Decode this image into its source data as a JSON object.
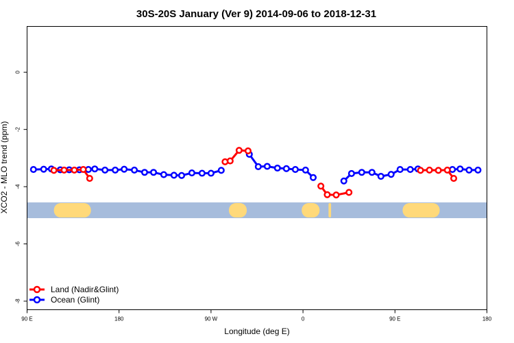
{
  "chart_data": {
    "type": "line",
    "title": "30S-20S January (Ver 9)   2014-09-06 to 2018-12-31",
    "xlabel": "Longitude (deg E)",
    "ylabel": "XCO2 - MLO trend (ppm)",
    "xlim": [
      90,
      450
    ],
    "ylim": [
      -8.3,
      1.6
    ],
    "x_ticks": [
      {
        "value": 90,
        "label": "90 E"
      },
      {
        "value": 162,
        "label": "180"
      },
      {
        "value": 234,
        "label": "90 W"
      },
      {
        "value": 306,
        "label": "0"
      },
      {
        "value": 378,
        "label": "90 E"
      },
      {
        "value": 450,
        "label": "180"
      }
    ],
    "y_ticks": [
      {
        "value": 0,
        "label": "0"
      },
      {
        "value": -2,
        "label": "-2"
      },
      {
        "value": -4,
        "label": "-4"
      },
      {
        "value": -6,
        "label": "-6"
      },
      {
        "value": -8,
        "label": "-8"
      }
    ],
    "grid": false,
    "legend": {
      "position": "bottom-left"
    },
    "colors": {
      "land": "#ff0000",
      "ocean": "#0000ff",
      "sea_band": "#a6bcdc",
      "land_band": "#ffd97a"
    },
    "surface_band": {
      "y_top": -4.55,
      "y_bottom": -5.1,
      "land_segments": [
        {
          "x_start": 111,
          "x_end": 140
        },
        {
          "x_start": 248,
          "x_end": 262
        },
        {
          "x_start": 305,
          "x_end": 319
        },
        {
          "x_start": 326,
          "x_end": 328
        },
        {
          "x_start": 384,
          "x_end": 413
        }
      ]
    },
    "series": [
      {
        "name": "Land (Nadir&Glint)",
        "key": "land",
        "segments": [
          [
            {
              "x": 111,
              "y": -3.43
            },
            {
              "x": 119,
              "y": -3.42
            },
            {
              "x": 127,
              "y": -3.42
            },
            {
              "x": 134,
              "y": -3.4
            },
            {
              "x": 139,
              "y": -3.71
            }
          ],
          [
            {
              "x": 245,
              "y": -3.13
            },
            {
              "x": 249,
              "y": -3.1
            },
            {
              "x": 256,
              "y": -2.73
            },
            {
              "x": 263,
              "y": -2.75
            }
          ],
          [
            {
              "x": 320,
              "y": -3.98
            },
            {
              "x": 325,
              "y": -4.28
            },
            {
              "x": 332,
              "y": -4.29
            },
            {
              "x": 342,
              "y": -4.2
            }
          ],
          [
            {
              "x": 398,
              "y": -3.43
            },
            {
              "x": 405,
              "y": -3.42
            },
            {
              "x": 412,
              "y": -3.43
            },
            {
              "x": 419,
              "y": -3.42
            },
            {
              "x": 424,
              "y": -3.71
            }
          ]
        ]
      },
      {
        "name": "Ocean (Glint)",
        "key": "ocean",
        "segments": [
          [
            {
              "x": 95,
              "y": -3.4
            },
            {
              "x": 103,
              "y": -3.39
            },
            {
              "x": 109,
              "y": -3.38
            },
            {
              "x": 116,
              "y": -3.41
            },
            {
              "x": 123,
              "y": -3.41
            },
            {
              "x": 131,
              "y": -3.41
            },
            {
              "x": 138,
              "y": -3.4
            },
            {
              "x": 143,
              "y": -3.38
            },
            {
              "x": 151,
              "y": -3.42
            },
            {
              "x": 159,
              "y": -3.42
            },
            {
              "x": 166,
              "y": -3.39
            },
            {
              "x": 174,
              "y": -3.42
            },
            {
              "x": 182,
              "y": -3.5
            },
            {
              "x": 189,
              "y": -3.5
            },
            {
              "x": 197,
              "y": -3.58
            },
            {
              "x": 205,
              "y": -3.6
            },
            {
              "x": 211,
              "y": -3.61
            },
            {
              "x": 219,
              "y": -3.52
            },
            {
              "x": 227,
              "y": -3.53
            },
            {
              "x": 234,
              "y": -3.53
            },
            {
              "x": 242,
              "y": -3.43
            }
          ],
          [
            {
              "x": 264,
              "y": -2.87
            },
            {
              "x": 271,
              "y": -3.3
            },
            {
              "x": 278,
              "y": -3.29
            },
            {
              "x": 286,
              "y": -3.35
            },
            {
              "x": 293,
              "y": -3.37
            },
            {
              "x": 300,
              "y": -3.4
            },
            {
              "x": 308,
              "y": -3.42
            },
            {
              "x": 314,
              "y": -3.68
            }
          ],
          [
            {
              "x": 338,
              "y": -3.8
            },
            {
              "x": 344,
              "y": -3.54
            },
            {
              "x": 352,
              "y": -3.5
            },
            {
              "x": 360,
              "y": -3.5
            },
            {
              "x": 367,
              "y": -3.64
            },
            {
              "x": 375,
              "y": -3.57
            },
            {
              "x": 382,
              "y": -3.4
            },
            {
              "x": 390,
              "y": -3.4
            },
            {
              "x": 396,
              "y": -3.38
            }
          ],
          [
            {
              "x": 423,
              "y": -3.4
            },
            {
              "x": 429,
              "y": -3.38
            },
            {
              "x": 436,
              "y": -3.42
            },
            {
              "x": 443,
              "y": -3.42
            }
          ]
        ]
      }
    ]
  }
}
